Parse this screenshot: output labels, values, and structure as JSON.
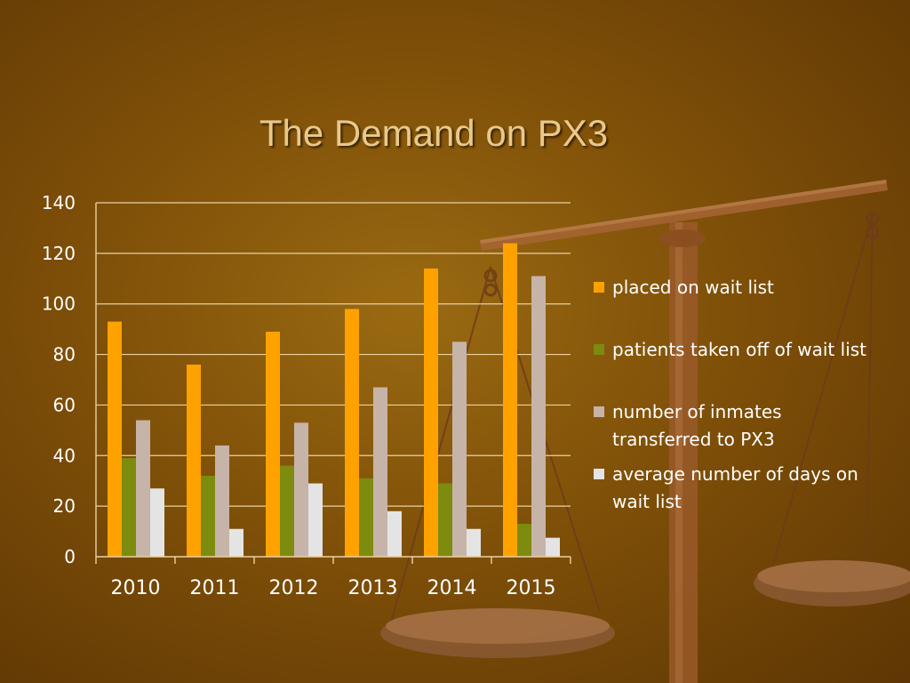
{
  "slide": {
    "title": "The Demand on PX3"
  },
  "chart_data": {
    "type": "bar",
    "title": "",
    "xlabel": "",
    "ylabel": "",
    "categories": [
      "2010",
      "2011",
      "2012",
      "2013",
      "2014",
      "2015"
    ],
    "ylim": [
      0,
      140
    ],
    "yticks": [
      0,
      20,
      40,
      60,
      80,
      100,
      120,
      140
    ],
    "grid": true,
    "legend_position": "right",
    "series": [
      {
        "name": "placed on wait list",
        "color": "#ffa200",
        "values": [
          93,
          76,
          89,
          98,
          114,
          124
        ]
      },
      {
        "name": "patients taken off of wait list",
        "color": "#7d8b0f",
        "values": [
          39,
          32,
          36,
          31,
          29,
          13
        ]
      },
      {
        "name": "number of inmates transferred to PX3",
        "color": "#c7b4a8",
        "values": [
          54,
          44,
          53,
          67,
          85,
          111
        ]
      },
      {
        "name": "average number of days on wait list",
        "color": "#e4e4e4",
        "values": [
          27,
          11,
          29,
          18,
          11,
          7.5
        ]
      }
    ]
  }
}
